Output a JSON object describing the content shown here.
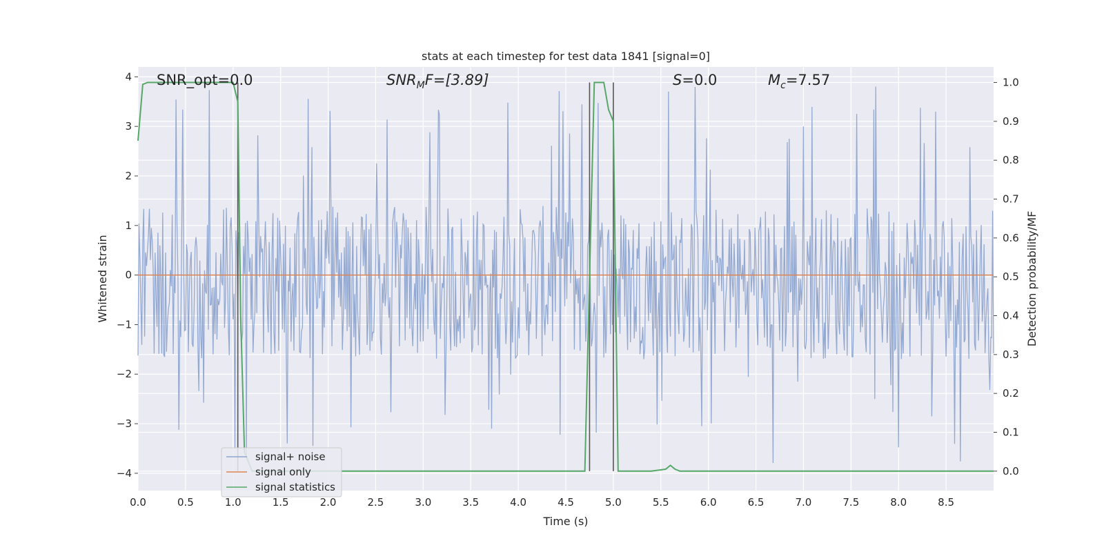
{
  "chart_data": {
    "type": "line",
    "title": "stats at each timestep for test data 1841 [signal=0]",
    "xlabel": "Time (s)",
    "ylabel": "Whitened strain",
    "ylabel_right": "Detection probability/MF",
    "xlim": [
      0.0,
      9.0
    ],
    "ylim": [
      -4.35,
      4.2
    ],
    "ylim_right": [
      -0.05,
      1.04
    ],
    "x_ticks": [
      "0.0",
      "0.5",
      "1.0",
      "1.5",
      "2.0",
      "2.5",
      "3.0",
      "3.5",
      "4.0",
      "4.5",
      "5.0",
      "5.5",
      "6.0",
      "6.5",
      "7.0",
      "7.5",
      "8.0",
      "8.5"
    ],
    "x_tick_values": [
      0.0,
      0.5,
      1.0,
      1.5,
      2.0,
      2.5,
      3.0,
      3.5,
      4.0,
      4.5,
      5.0,
      5.5,
      6.0,
      6.5,
      7.0,
      7.5,
      8.0,
      8.5
    ],
    "y_ticks": [
      "−4",
      "−3",
      "−2",
      "−1",
      "0",
      "1",
      "2",
      "3",
      "4"
    ],
    "y_tick_values": [
      -4,
      -3,
      -2,
      -1,
      0,
      1,
      2,
      3,
      4
    ],
    "y_ticks_right": [
      "0.0",
      "0.1",
      "0.2",
      "0.3",
      "0.4",
      "0.5",
      "0.6",
      "0.7",
      "0.8",
      "0.9",
      "1.0"
    ],
    "y_tick_values_right": [
      0.0,
      0.1,
      0.2,
      0.3,
      0.4,
      0.5,
      0.6,
      0.7,
      0.8,
      0.9,
      1.0
    ],
    "grid": true,
    "legend_position": "lower-left",
    "annotations": {
      "snr_opt": "SNR_opt=0.0",
      "snr_mf_base": "SNR",
      "snr_mf_sub": "M",
      "snr_mf_rest": "F=[3.89]",
      "s_label": "S",
      "s_value": "=0.0",
      "mc_base": "M",
      "mc_sub": "c",
      "mc_value": "=7.57"
    },
    "series": [
      {
        "name": "signal+ noise",
        "axis": "left",
        "color": "#8fa5cf",
        "description_values": "whitened noise, roughly uniform band between -1.7 and 1.4 with spikes to about ±3.8",
        "band": [
          -1.7,
          1.4
        ],
        "peak_max": 3.85,
        "peak_min": -3.95,
        "sample_count": 900
      },
      {
        "name": "signal only",
        "axis": "left",
        "color": "#dd8452",
        "x": [
          0.0,
          9.0
        ],
        "y": [
          0.0,
          0.0
        ]
      },
      {
        "name": "signal statistics",
        "axis": "right",
        "color": "#55a868",
        "x": [
          0.0,
          0.05,
          0.1,
          0.2,
          0.3,
          0.5,
          0.7,
          0.9,
          1.0,
          1.05,
          1.08,
          1.12,
          1.2,
          1.3,
          1.5,
          2.0,
          3.0,
          4.0,
          4.5,
          4.7,
          4.75,
          4.8,
          4.9,
          4.95,
          5.0,
          5.05,
          5.08,
          5.2,
          5.4,
          5.55,
          5.6,
          5.65,
          5.7,
          6.0,
          7.0,
          8.0,
          8.5,
          9.0
        ],
        "y": [
          0.85,
          0.995,
          1.0,
          1.0,
          1.0,
          1.0,
          1.0,
          1.0,
          1.0,
          0.95,
          0.4,
          0.05,
          0.0,
          0.0,
          0.0,
          0.0,
          0.0,
          0.0,
          0.0,
          0.0,
          0.5,
          1.0,
          1.0,
          0.93,
          0.9,
          0.0,
          0.0,
          0.0,
          0.0,
          0.005,
          0.015,
          0.005,
          0.0,
          0.0,
          0.0,
          0.0,
          0.0,
          0.0
        ]
      }
    ],
    "vertical_markers": [
      {
        "x": 1.05,
        "y_range": [
          0.0,
          1.0
        ],
        "color": "#555555"
      },
      {
        "x": 4.75,
        "y_range": [
          0.0,
          1.0
        ],
        "color": "#555555"
      },
      {
        "x": 5.0,
        "y_range": [
          0.0,
          1.0
        ],
        "color": "#555555"
      }
    ],
    "colors": {
      "plot_background": "#eaeaf2",
      "grid": "#ffffff"
    }
  }
}
